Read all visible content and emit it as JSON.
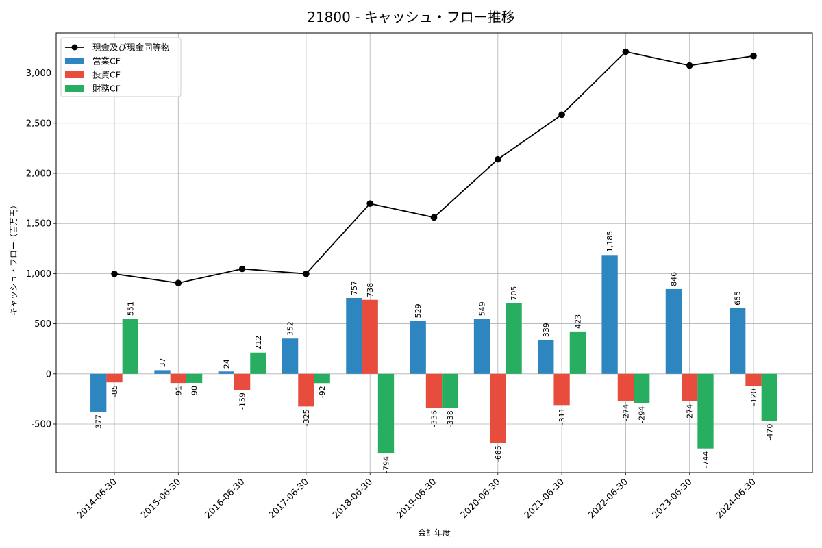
{
  "chart_data": {
    "type": "bar",
    "title": "21800 - キャッシュ・フロー推移",
    "xlabel": "会計年度",
    "ylabel": "キャッシュ・フロー（百万円）",
    "categories": [
      "2014-06-30",
      "2015-06-30",
      "2016-06-30",
      "2017-06-30",
      "2018-06-30",
      "2019-06-30",
      "2020-06-30",
      "2021-06-30",
      "2022-06-30",
      "2023-06-30",
      "2024-06-30"
    ],
    "ylim": [
      -985,
      3400
    ],
    "yticks": [
      -500,
      0,
      500,
      1000,
      1500,
      2000,
      2500,
      3000
    ],
    "ytick_labels": [
      "-500",
      "0",
      "500",
      "1,000",
      "1,500",
      "2,000",
      "2,500",
      "3,000"
    ],
    "grid": true,
    "legend_position": "top-left",
    "series": [
      {
        "name": "営業CF",
        "kind": "bar",
        "color": "#2e86c1",
        "values": [
          -377,
          37,
          24,
          352,
          757,
          529,
          549,
          339,
          1185,
          846,
          655
        ],
        "labels": [
          "-377",
          "37",
          "24",
          "352",
          "757",
          "529",
          "549",
          "339",
          "1,185",
          "846",
          "655"
        ]
      },
      {
        "name": "投資CF",
        "kind": "bar",
        "color": "#e74c3c",
        "values": [
          -85,
          -91,
          -159,
          -325,
          738,
          -336,
          -685,
          -311,
          -274,
          -274,
          -120
        ],
        "labels": [
          "-85",
          "-91",
          "-159",
          "-325",
          "738",
          "-336",
          "-685",
          "-311",
          "-274",
          "-274",
          "-120"
        ]
      },
      {
        "name": "財務CF",
        "kind": "bar",
        "color": "#27ae60",
        "values": [
          551,
          -90,
          212,
          -92,
          -794,
          -338,
          705,
          423,
          -294,
          -744,
          -470
        ],
        "labels": [
          "551",
          "-90",
          "212",
          "-92",
          "-794",
          "-338",
          "705",
          "423",
          "-294",
          "-744",
          "-470"
        ]
      },
      {
        "name": "現金及び現金同等物",
        "kind": "line",
        "color": "#000000",
        "values": [
          997,
          906,
          1047,
          998,
          1698,
          1560,
          2139,
          2585,
          3212,
          3075,
          3170
        ]
      }
    ]
  }
}
